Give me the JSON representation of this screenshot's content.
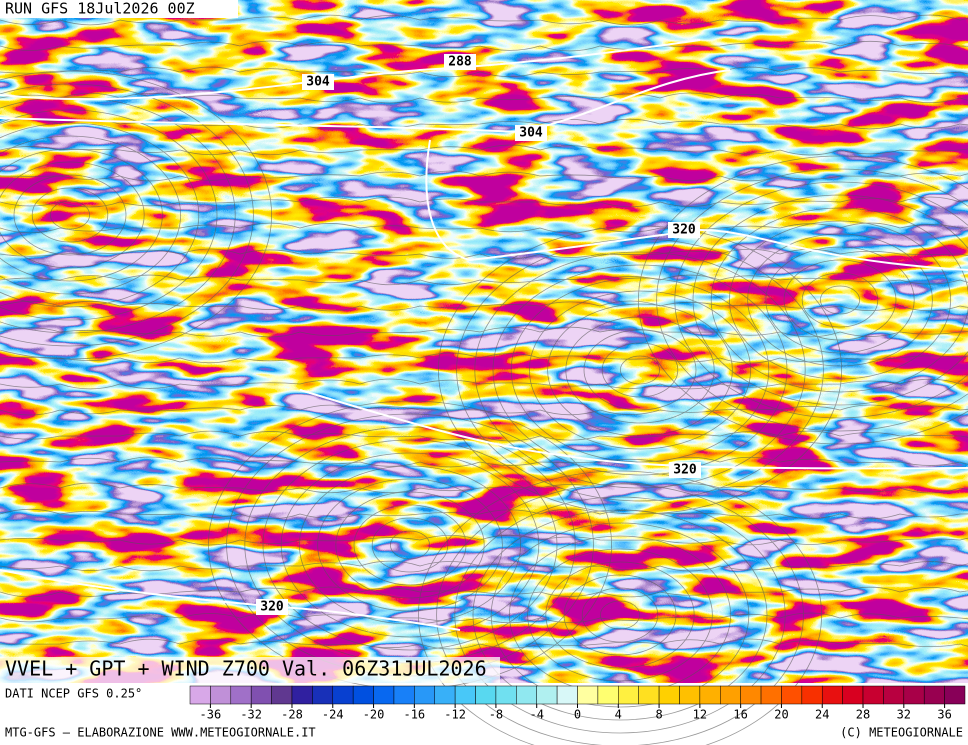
{
  "header": {
    "run": "RUN GFS 18Jul2026 00Z"
  },
  "map": {
    "contour_labels": [
      288,
      304,
      304,
      320,
      320,
      320
    ]
  },
  "title": "VVEL + GPT + WIND Z700 Val. 06Z31JUL2026",
  "colorbar": {
    "source": "DATI NCEP GFS 0.25°",
    "min": -38,
    "max": 38,
    "colors": [
      "#d8a8e8",
      "#c090d8",
      "#a070c8",
      "#8050b0",
      "#603890",
      "#3020a0",
      "#1830b8",
      "#0840d0",
      "#0050e0",
      "#0868f0",
      "#1880f8",
      "#2898f8",
      "#38b0f8",
      "#48c8f8",
      "#58d8f0",
      "#70e0f0",
      "#90e8f0",
      "#b0f0f0",
      "#d8f8f8",
      "#ffffa0",
      "#ffff70",
      "#fff040",
      "#ffe020",
      "#ffd000",
      "#ffc000",
      "#ffb000",
      "#ffa000",
      "#ff8800",
      "#ff7000",
      "#ff5000",
      "#f83000",
      "#e81010",
      "#d80020",
      "#c80030",
      "#b80040",
      "#a80048",
      "#980050",
      "#880058"
    ],
    "ticks": [
      -36,
      -32,
      -28,
      -24,
      -20,
      -16,
      -12,
      -8,
      -4,
      0,
      4,
      8,
      12,
      16,
      20,
      24,
      28,
      32,
      36
    ]
  },
  "footer": {
    "left": "MTG-GFS – ELABORAZIONE WWW.METEOGIORNALE.IT",
    "right": "(C) METEOGIORNALE"
  }
}
